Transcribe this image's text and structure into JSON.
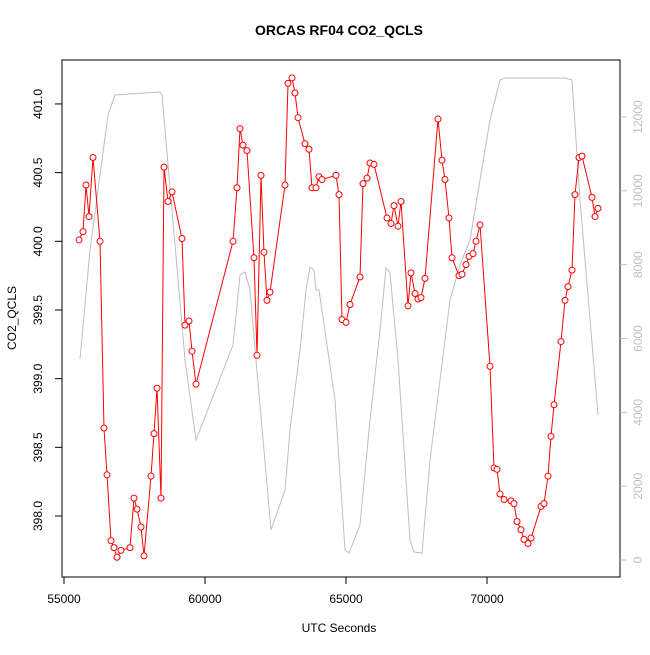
{
  "chart_data": {
    "type": "line",
    "title": "ORCAS RF04 CO2_QCLS",
    "xlabel": "UTC Seconds",
    "ylabel": "CO2_QCLS",
    "xlim": [
      54929,
      74716
    ],
    "ylim": [
      397.556,
      401.32
    ],
    "y2lim": [
      -460,
      13544
    ],
    "xticks": [
      55000,
      60000,
      65000,
      70000
    ],
    "yticks": [
      {
        "value": 398.0,
        "label": "398.0"
      },
      398.5,
      {
        "value": 399.0,
        "label": "399.0"
      },
      399.5,
      {
        "value": 400.0,
        "label": "400.0"
      },
      400.5,
      {
        "value": 401.0,
        "label": "401.0"
      }
    ],
    "y2ticks": [
      0,
      2000,
      4000,
      6000,
      8000,
      10000,
      12000
    ],
    "series": [
      {
        "color": "#bebebe",
        "axis": "y2",
        "markers": false,
        "x": [
          55567,
          55922,
          56277,
          56560,
          56809,
          58404,
          58475,
          59291,
          59681,
          60993,
          61241,
          61418,
          61596,
          61809,
          62340,
          62837,
          63014,
          63369,
          63581,
          63723,
          63865,
          63936,
          64042,
          64610,
          64965,
          65106,
          65496,
          65851,
          66206,
          66418,
          66560,
          66844,
          67270,
          67411,
          67695,
          67979,
          68688,
          69042,
          69397,
          70106,
          70461,
          70638,
          72766,
          73014,
          73298,
          73936
        ],
        "values": [
          5445,
          8398,
          10430,
          12055,
          12597,
          12678,
          12597,
          5418,
          3251,
          5824,
          7721,
          7802,
          7314,
          5418,
          813,
          1896,
          3522,
          5689,
          7314,
          7937,
          7856,
          7314,
          7314,
          4334,
          271,
          190,
          948,
          3793,
          6231,
          7910,
          7775,
          5418,
          542,
          217,
          190,
          2709,
          7043,
          7992,
          8669,
          11920,
          13003,
          13057,
          13057,
          13003,
          9752,
          3928
        ]
      },
      {
        "color": "#ff0000",
        "axis": "y",
        "markers": true,
        "x": [
          55532,
          55674,
          55780,
          55887,
          56028,
          56277,
          56418,
          56525,
          56667,
          56773,
          56879,
          57021,
          57340,
          57482,
          57589,
          57730,
          57837,
          58085,
          58191,
          58298,
          58440,
          58546,
          58688,
          58830,
          59184,
          59291,
          59433,
          59539,
          59681,
          60993,
          61135,
          61241,
          61347,
          61489,
          61737,
          61844,
          61986,
          62092,
          62198,
          62305,
          62837,
          62943,
          63085,
          63191,
          63298,
          63546,
          63688,
          63794,
          63936,
          64042,
          64149,
          64645,
          64752,
          64858,
          65000,
          65142,
          65496,
          65603,
          65745,
          65851,
          65993,
          66454,
          66596,
          66702,
          66844,
          66950,
          67198,
          67305,
          67447,
          67553,
          67659,
          67801,
          68262,
          68404,
          68510,
          68652,
          68759,
          69007,
          69113,
          69255,
          69362,
          69504,
          69610,
          69752,
          70106,
          70248,
          70355,
          70461,
          70603,
          70851,
          70957,
          71064,
          71206,
          71312,
          71454,
          71560,
          71915,
          72021,
          72163,
          72269,
          72376,
          72624,
          72766,
          72872,
          73014,
          73120,
          73262,
          73369,
          73723,
          73830,
          73936
        ],
        "values": [
          400.01,
          400.07,
          400.41,
          400.18,
          400.61,
          400.0,
          398.64,
          398.3,
          397.82,
          397.77,
          397.7,
          397.75,
          397.77,
          398.13,
          398.05,
          397.92,
          397.71,
          398.29,
          398.6,
          398.93,
          398.13,
          400.54,
          400.29,
          400.36,
          400.02,
          399.39,
          399.42,
          399.2,
          398.96,
          400.0,
          400.39,
          400.82,
          400.7,
          400.66,
          399.88,
          399.17,
          400.48,
          399.92,
          399.57,
          399.63,
          400.41,
          401.15,
          401.19,
          401.08,
          400.9,
          400.71,
          400.67,
          400.39,
          400.39,
          400.47,
          400.45,
          400.48,
          400.34,
          399.43,
          399.41,
          399.54,
          399.74,
          400.42,
          400.46,
          400.57,
          400.56,
          400.17,
          400.13,
          400.26,
          400.11,
          400.29,
          399.53,
          399.77,
          399.62,
          399.58,
          399.59,
          399.73,
          400.89,
          400.59,
          400.45,
          400.17,
          399.88,
          399.75,
          399.76,
          399.83,
          399.89,
          399.91,
          400.0,
          400.12,
          399.09,
          398.35,
          398.34,
          398.16,
          398.12,
          398.11,
          398.09,
          397.96,
          397.9,
          397.83,
          397.8,
          397.84,
          398.07,
          398.09,
          398.29,
          398.58,
          398.81,
          399.27,
          399.57,
          399.67,
          399.79,
          400.34,
          400.61,
          400.62,
          400.32,
          400.18,
          400.24
        ]
      }
    ]
  }
}
